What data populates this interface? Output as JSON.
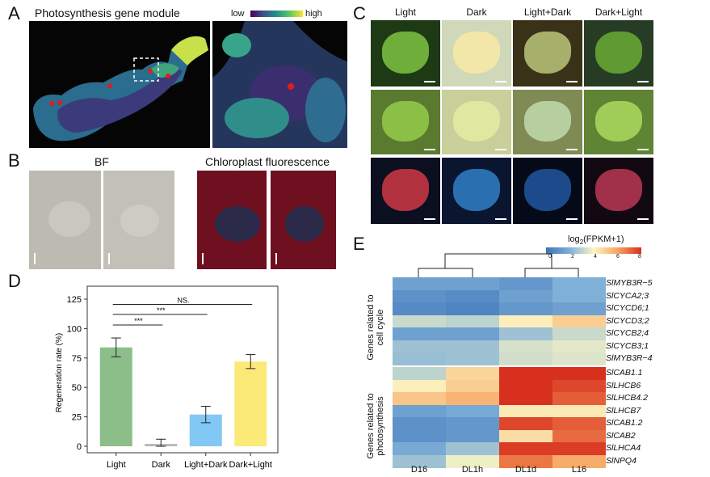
{
  "panelA": {
    "label": "A",
    "title": "Photosynthesis gene module",
    "legend_low": "low",
    "legend_high": "high"
  },
  "panelB": {
    "label": "B",
    "bf_title": "BF",
    "cf_title": "Chloroplast fluorescence"
  },
  "panelC": {
    "label": "C",
    "columns": [
      "Light",
      "Dark",
      "Light+Dark",
      "Dark+Light"
    ]
  },
  "panelD": {
    "label": "D",
    "sig": [
      "NS.",
      "***",
      "***"
    ]
  },
  "panelE": {
    "label": "E",
    "colorbar_title": "log2(FPKM+1)",
    "colorbar_ticks": [
      "0",
      "2",
      "4",
      "6",
      "8"
    ],
    "group1": "Genes related to cell cycle",
    "group2": "Genes related to photosynthesis",
    "columns": [
      "D16",
      "DL1h",
      "DL1d",
      "L16"
    ]
  },
  "chart_data": [
    {
      "type": "bar",
      "categories": [
        "Light",
        "Dark",
        "Light+Dark",
        "Dark+Light"
      ],
      "values": [
        84,
        2,
        27,
        72
      ],
      "errors": [
        8,
        4,
        7,
        6
      ],
      "colors": [
        "#8cbe8a",
        "#b8b8b8",
        "#82c8f5",
        "#fbea78"
      ],
      "ylabel": "Regeneration rate (%)",
      "ylim": [
        0,
        125
      ],
      "yticks": [
        0,
        25,
        50,
        75,
        100,
        125
      ]
    },
    {
      "type": "heatmap",
      "columns": [
        "D16",
        "DL1h",
        "DL1d",
        "L16"
      ],
      "rows": [
        "SlMYB3R−5",
        "SlCYCA2;3",
        "SlCYCD6;1",
        "SlCYCD3;2",
        "SlCYCB2;4",
        "SlCYCB3;1",
        "SlMYB3R−4",
        "SlCAB1.1",
        "SlLHCB6",
        "SlLHCB4.2",
        "SlLHCB7",
        "SlCAB1.2",
        "SlCAB2",
        "SlLHCA4",
        "SlNPQ4"
      ],
      "values": [
        [
          1.5,
          1.5,
          1.2,
          2.0
        ],
        [
          1.0,
          0.8,
          1.5,
          2.0
        ],
        [
          0.8,
          0.6,
          1.2,
          1.5
        ],
        [
          3.2,
          3.0,
          4.2,
          5.0
        ],
        [
          1.5,
          1.5,
          2.5,
          3.2
        ],
        [
          2.5,
          2.5,
          3.4,
          3.6
        ],
        [
          2.4,
          2.5,
          3.3,
          3.5
        ],
        [
          3.0,
          4.8,
          8.0,
          8.0
        ],
        [
          4.2,
          5.0,
          8.0,
          7.6
        ],
        [
          5.2,
          5.6,
          8.0,
          7.2
        ],
        [
          1.5,
          1.8,
          4.3,
          4.3
        ],
        [
          1.0,
          1.2,
          7.6,
          7.2
        ],
        [
          1.0,
          1.2,
          4.6,
          7.0
        ],
        [
          1.8,
          2.5,
          7.8,
          7.8
        ],
        [
          2.5,
          3.8,
          6.8,
          5.8
        ]
      ],
      "colorbar": {
        "title": "log2(FPKM+1)",
        "range": [
          0,
          8
        ]
      }
    }
  ]
}
